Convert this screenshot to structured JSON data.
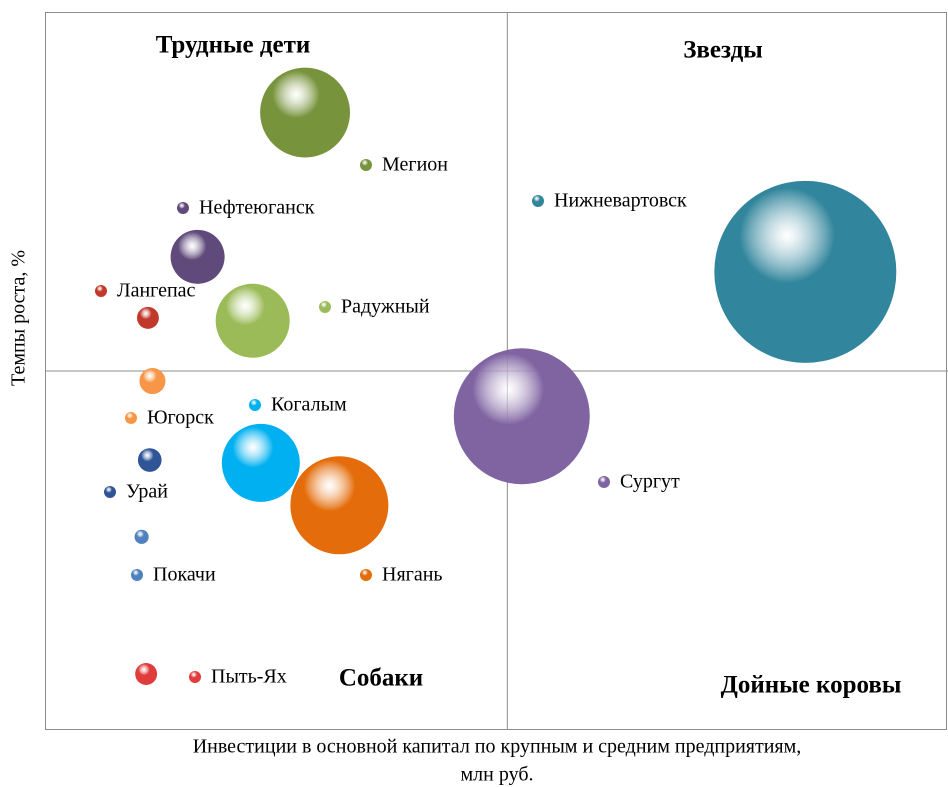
{
  "chart_data": {
    "type": "bubble",
    "x_label": "Инвестиции в основной капитал по крупным и средним предприятиям, млн руб.",
    "x_label_lines": [
      "Инвестиции в основной капитал по крупным и средним предприятиям,",
      "млн руб."
    ],
    "y_label": "Темпы роста, %",
    "quadrants": [
      "Трудные дети",
      "Звезды",
      "Собаки",
      "Дойные коровы"
    ],
    "xlim": [
      0,
      100
    ],
    "ylim": [
      0,
      100
    ],
    "reference_lines": {
      "x": 51.2,
      "y": 50
    },
    "series": [
      {
        "name": "Мегион",
        "color": "#77933c",
        "x": [
          28.8
        ],
        "values": [
          86.0
        ],
        "sizes": [
          202
        ]
      },
      {
        "name": "Нефтеюганск",
        "color": "#604a7b",
        "x": [
          16.9
        ],
        "values": [
          65.9
        ],
        "sizes": [
          73
        ]
      },
      {
        "name": "Лангепас",
        "color": "#c0392b",
        "x": [
          11.4
        ],
        "values": [
          57.4
        ],
        "sizes": [
          12
        ]
      },
      {
        "name": "Радужный",
        "color": "#9bbb59",
        "x": [
          23.0
        ],
        "values": [
          57.0
        ],
        "sizes": [
          137
        ]
      },
      {
        "name": "Югорск",
        "color": "#f79646",
        "x": [
          11.9
        ],
        "values": [
          48.6
        ],
        "sizes": [
          17
        ]
      },
      {
        "name": "Урай",
        "color": "#2f5597",
        "x": [
          11.6
        ],
        "values": [
          37.6
        ],
        "sizes": [
          14
        ]
      },
      {
        "name": "Покачи",
        "color": "#4f81bd",
        "x": [
          10.7
        ],
        "values": [
          26.9
        ],
        "sizes": [
          5
        ]
      },
      {
        "name": "Пыть-Ях",
        "color": "#e03c3c",
        "x": [
          11.2
        ],
        "values": [
          7.8
        ],
        "sizes": [
          12
        ]
      },
      {
        "name": "Когалым",
        "color": "#00b0f0",
        "x": [
          23.9
        ],
        "values": [
          37.2
        ],
        "sizes": [
          152
        ]
      },
      {
        "name": "Нягань",
        "color": "#e46c0a",
        "x": [
          32.6
        ],
        "values": [
          31.3
        ],
        "sizes": [
          240
        ]
      },
      {
        "name": "Сургут",
        "color": "#8064a2",
        "x": [
          52.8
        ],
        "values": [
          43.7
        ],
        "sizes": [
          462
        ]
      },
      {
        "name": "Нижневартовск",
        "color": "#31859c",
        "x": [
          84.2
        ],
        "values": [
          63.8
        ],
        "sizes": [
          828
        ]
      }
    ]
  }
}
